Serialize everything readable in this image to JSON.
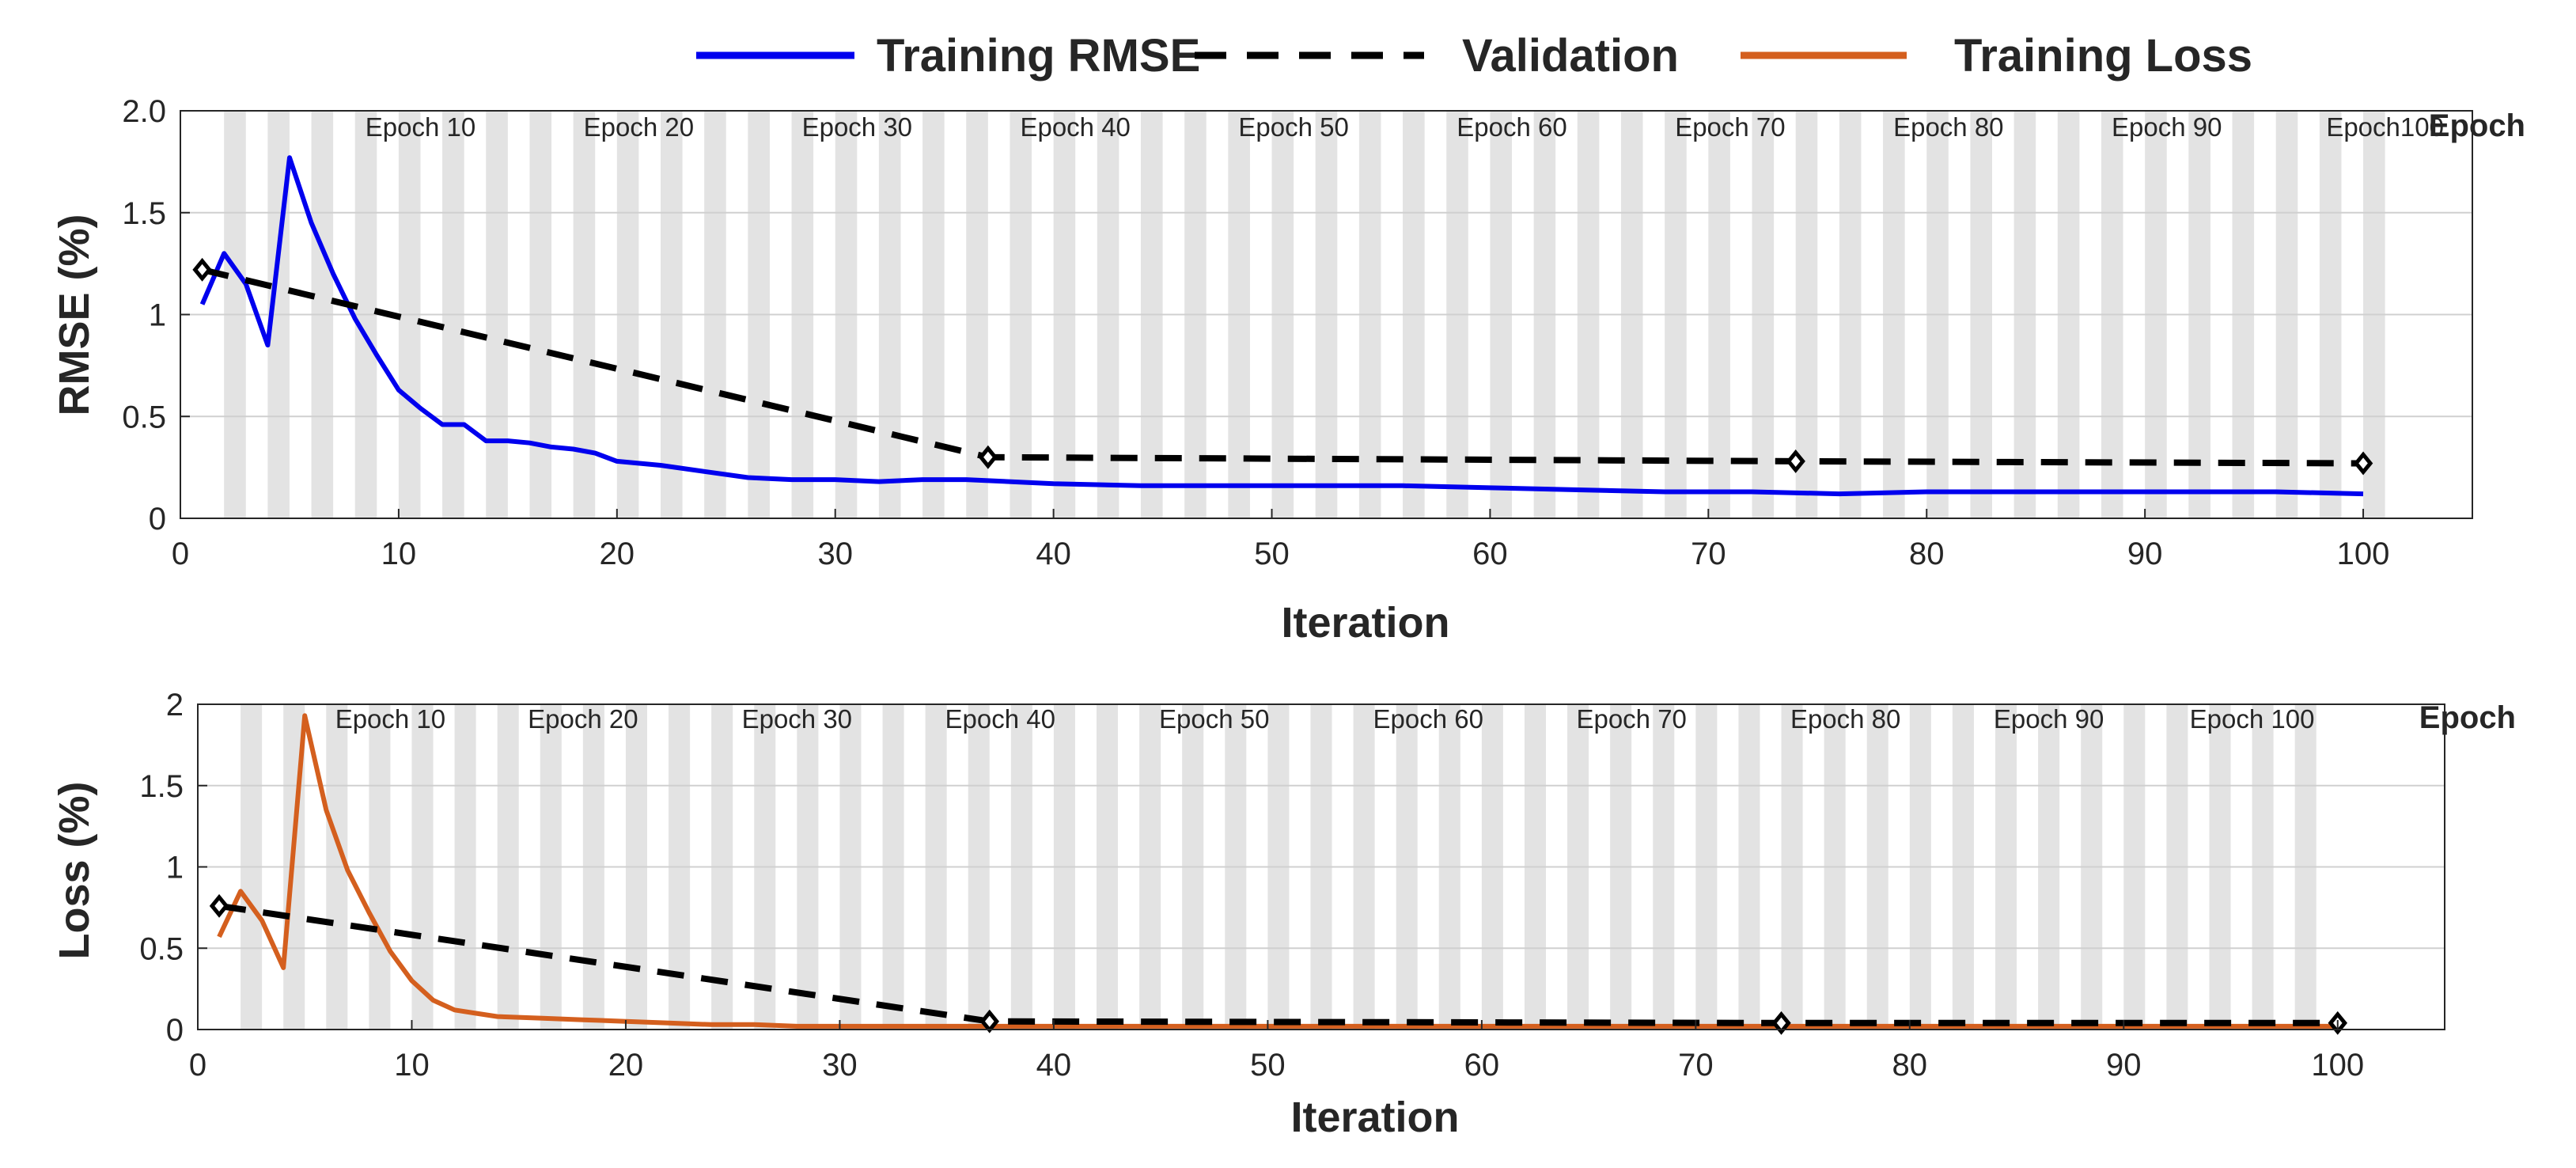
{
  "legend": {
    "items": [
      {
        "label": "Training RMSE",
        "color": "#0000ee",
        "style": "solid"
      },
      {
        "label": "Validation",
        "color": "#000000",
        "style": "dashed"
      },
      {
        "label": "Training Loss",
        "color": "#d45f1e",
        "style": "solid"
      }
    ]
  },
  "chart_data": [
    {
      "type": "line",
      "xlabel": "Iteration",
      "ylabel": "RMSE (%)",
      "xlim": [
        0,
        105
      ],
      "ylim": [
        0,
        2.0
      ],
      "xticks": [
        0,
        10,
        20,
        30,
        40,
        50,
        60,
        70,
        80,
        90,
        100
      ],
      "yticks": [
        0,
        0.5,
        1,
        1.5,
        2.0
      ],
      "ytick_labels": [
        "0",
        "0.5",
        "1",
        "1.5",
        "2.0"
      ],
      "grid": true,
      "epoch_axis_label": "Epoch",
      "epoch_labels": [
        {
          "text": "Epoch 10",
          "x": 11
        },
        {
          "text": "Epoch 20",
          "x": 21
        },
        {
          "text": "Epoch 30",
          "x": 31
        },
        {
          "text": "Epoch 40",
          "x": 41
        },
        {
          "text": "Epoch 50",
          "x": 51
        },
        {
          "text": "Epoch 60",
          "x": 61
        },
        {
          "text": "Epoch 70",
          "x": 71
        },
        {
          "text": "Epoch 80",
          "x": 81
        },
        {
          "text": "Epoch 90",
          "x": 91
        },
        {
          "text": "Epoch100",
          "x": 101
        }
      ],
      "epoch_band_start": 2,
      "epoch_band_end": 101,
      "series": [
        {
          "name": "Training RMSE",
          "color": "#0000ee",
          "style": "solid",
          "x": [
            1,
            2,
            3,
            4,
            5,
            6,
            7,
            8,
            9,
            10,
            11,
            12,
            13,
            14,
            15,
            16,
            17,
            18,
            19,
            20,
            22,
            24,
            26,
            28,
            30,
            32,
            34,
            36,
            40,
            44,
            48,
            52,
            56,
            60,
            64,
            68,
            72,
            76,
            80,
            84,
            88,
            92,
            96,
            100
          ],
          "y": [
            1.05,
            1.3,
            1.15,
            0.85,
            1.77,
            1.45,
            1.2,
            0.98,
            0.8,
            0.63,
            0.54,
            0.46,
            0.46,
            0.38,
            0.38,
            0.37,
            0.35,
            0.34,
            0.32,
            0.28,
            0.26,
            0.23,
            0.2,
            0.19,
            0.19,
            0.18,
            0.19,
            0.19,
            0.17,
            0.16,
            0.16,
            0.16,
            0.16,
            0.15,
            0.14,
            0.13,
            0.13,
            0.12,
            0.13,
            0.13,
            0.13,
            0.13,
            0.13,
            0.12
          ]
        },
        {
          "name": "Validation",
          "color": "#000000",
          "style": "dashed",
          "x": [
            1,
            37,
            74,
            100
          ],
          "y": [
            1.22,
            0.3,
            0.28,
            0.27
          ],
          "markers": true
        }
      ]
    },
    {
      "type": "line",
      "xlabel": "Iteration",
      "ylabel": "Loss (%)",
      "xlim": [
        0,
        105
      ],
      "ylim": [
        0,
        2.0
      ],
      "xticks": [
        0,
        10,
        20,
        30,
        40,
        50,
        60,
        70,
        80,
        90,
        100
      ],
      "yticks": [
        0,
        0.5,
        1,
        1.5,
        2
      ],
      "ytick_labels": [
        "0",
        "0.5",
        "1",
        "1.5",
        "2"
      ],
      "grid": true,
      "epoch_axis_label": "Epoch",
      "epoch_labels": [
        {
          "text": "Epoch 10",
          "x": 9
        },
        {
          "text": "Epoch 20",
          "x": 18
        },
        {
          "text": "Epoch 30",
          "x": 28
        },
        {
          "text": "Epoch 40",
          "x": 37.5
        },
        {
          "text": "Epoch 50",
          "x": 47.5
        },
        {
          "text": "Epoch 60",
          "x": 57.5
        },
        {
          "text": "Epoch 70",
          "x": 67
        },
        {
          "text": "Epoch 80",
          "x": 77
        },
        {
          "text": "Epoch 90",
          "x": 86.5
        },
        {
          "text": "Epoch 100",
          "x": 96
        }
      ],
      "epoch_band_start": 2,
      "epoch_band_end": 99,
      "series": [
        {
          "name": "Training Loss",
          "color": "#d45f1e",
          "style": "solid",
          "x": [
            1,
            2,
            3,
            4,
            5,
            6,
            7,
            8,
            9,
            10,
            11,
            12,
            13,
            14,
            16,
            18,
            20,
            22,
            24,
            26,
            28,
            30,
            35,
            40,
            50,
            60,
            70,
            80,
            90,
            100
          ],
          "y": [
            0.57,
            0.85,
            0.67,
            0.38,
            1.93,
            1.35,
            0.98,
            0.72,
            0.48,
            0.3,
            0.18,
            0.12,
            0.1,
            0.08,
            0.07,
            0.06,
            0.05,
            0.04,
            0.03,
            0.03,
            0.02,
            0.02,
            0.02,
            0.02,
            0.02,
            0.02,
            0.02,
            0.02,
            0.02,
            0.02
          ]
        },
        {
          "name": "Validation",
          "color": "#000000",
          "style": "dashed",
          "x": [
            1,
            37,
            74,
            100
          ],
          "y": [
            0.76,
            0.05,
            0.04,
            0.04
          ],
          "markers": true
        }
      ]
    }
  ]
}
